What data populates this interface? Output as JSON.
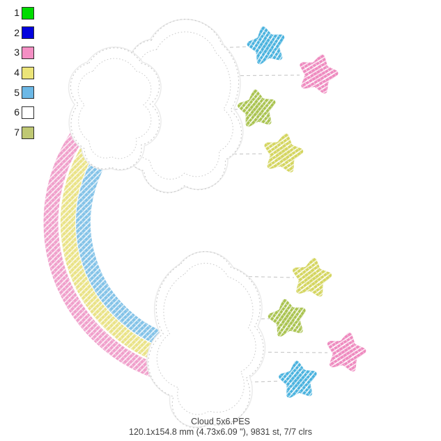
{
  "window": {
    "background": "#ffffff"
  },
  "palette": {
    "swatch_border": "#2b2b2b",
    "items": [
      {
        "num": "1",
        "color": "#00dc00",
        "name": "green"
      },
      {
        "num": "2",
        "color": "#0202dd",
        "name": "blue"
      },
      {
        "num": "3",
        "color": "#f48fc4",
        "name": "pink"
      },
      {
        "num": "4",
        "color": "#ebe478",
        "name": "pale-yellow"
      },
      {
        "num": "5",
        "color": "#6cb8e6",
        "name": "light-blue"
      },
      {
        "num": "6",
        "color": "#ffffff",
        "name": "white"
      },
      {
        "num": "7",
        "color": "#bfc873",
        "name": "olive"
      }
    ]
  },
  "design": {
    "cloud_fill": "#ffffff",
    "cloud_stitch_color": "#c9c9c9",
    "cloud_halo_color": "#ebebeb",
    "string_color": "#c9c9c9",
    "rainbow": {
      "bands": [
        {
          "name": "pink-band",
          "color": "#f0a0cb"
        },
        {
          "name": "yellow-band",
          "color": "#eae387"
        },
        {
          "name": "blue-band",
          "color": "#84c3e8"
        }
      ]
    },
    "stars": {
      "top": [
        {
          "name": "blue-star",
          "color": "#49b2de"
        },
        {
          "name": "pink-star",
          "color": "#ee8abf"
        },
        {
          "name": "green-star",
          "color": "#a9c34f"
        },
        {
          "name": "yellow-star",
          "color": "#d4d55f"
        }
      ],
      "bottom": [
        {
          "name": "yellow-star",
          "color": "#d4d55f"
        },
        {
          "name": "green-star",
          "color": "#a9c34f"
        },
        {
          "name": "pink-star",
          "color": "#ee8abf"
        },
        {
          "name": "blue-star",
          "color": "#49b2de"
        }
      ]
    }
  },
  "caption": {
    "filename": "Cloud 5x6.PES",
    "details": "120.1x154.8 mm (4.73x6.09 \"), 9831 st, 7/7 clrs"
  }
}
